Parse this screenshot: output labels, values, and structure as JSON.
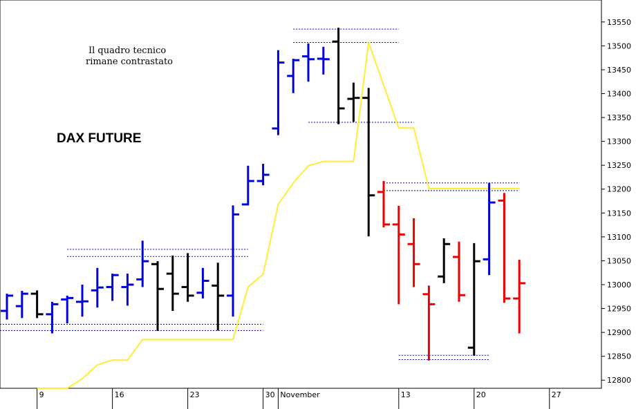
{
  "chart_data": {
    "type": "ohlc",
    "title": "DAX FUTURE",
    "annotations": [
      "Il quadro tecnico",
      "rimane contrastato"
    ],
    "xlim": [
      -0.46,
      39.45
    ],
    "ylim": [
      12783,
      13596
    ],
    "xticks": [
      {
        "value": 2,
        "label": "9"
      },
      {
        "value": 7,
        "label": "16"
      },
      {
        "value": 12,
        "label": "23"
      },
      {
        "value": 17,
        "label": "30"
      },
      {
        "value": 18,
        "label": "November"
      },
      {
        "value": 26,
        "label": "13"
      },
      {
        "value": 31,
        "label": "20"
      },
      {
        "value": 36,
        "label": "27"
      }
    ],
    "yticks": [
      12800,
      12850,
      12900,
      12950,
      13000,
      13050,
      13100,
      13150,
      13200,
      13250,
      13300,
      13350,
      13400,
      13450,
      13500,
      13550
    ],
    "open": [
      12945,
      12955,
      12981,
      12938,
      12969,
      12964,
      12988,
      12995,
      12995,
      13011,
      13043,
      13023,
      12995,
      12983,
      12998,
      12977,
      13168,
      13217,
      13327,
      13437,
      13478,
      13473,
      13509,
      13389,
      13391,
      13194,
      13126,
      13085,
      12980,
      13017,
      13058,
      12868,
      13053,
      13176,
      12971
    ],
    "high": [
      12981,
      12987,
      12988,
      12964,
      12977,
      13000,
      13035,
      13023,
      13023,
      13092,
      13049,
      13061,
      13066,
      13035,
      13046,
      13166,
      13249,
      13253,
      13491,
      13473,
      13505,
      13498,
      13538,
      13423,
      13412,
      13217,
      13165,
      13139,
      12998,
      13097,
      13090,
      13087,
      13213,
      13192,
      13052
    ],
    "low": [
      12927,
      12930,
      12930,
      12898,
      12919,
      12933,
      12952,
      12966,
      12956,
      12995,
      12903,
      12945,
      12964,
      12971,
      12904,
      12933,
      13166,
      13208,
      13313,
      13401,
      13425,
      13440,
      13336,
      13341,
      13101,
      13120,
      12959,
      12995,
      12841,
      13003,
      12964,
      12851,
      13020,
      12962,
      12898
    ],
    "close": [
      12977,
      12981,
      12938,
      12959,
      12972,
      12965,
      12994,
      13020,
      13000,
      13049,
      12991,
      12981,
      12977,
      13008,
      12977,
      13147,
      13217,
      13230,
      13465,
      13470,
      13472,
      13472,
      13369,
      13391,
      13187,
      13126,
      13105,
      13043,
      12959,
      13085,
      12978,
      13049,
      13172,
      12971,
      13003
    ],
    "colors": [
      "#0000dd",
      "#0000dd",
      "#000000",
      "#0000dd",
      "#0000dd",
      "#0000dd",
      "#0000dd",
      "#0000dd",
      "#0000dd",
      "#0000dd",
      "#000000",
      "#000000",
      "#000000",
      "#0000dd",
      "#000000",
      "#0000dd",
      "#0000dd",
      "#0000dd",
      "#0000dd",
      "#0000dd",
      "#0000dd",
      "#0000dd",
      "#000000",
      "#000000",
      "#000000",
      "#ee0000",
      "#ee0000",
      "#ee0000",
      "#ee0000",
      "#000000",
      "#ee0000",
      "#000000",
      "#0000dd",
      "#ee0000",
      "#ee0000"
    ],
    "line": {
      "color": "#ffee33",
      "x": [
        2,
        4,
        5,
        6,
        7,
        8,
        9,
        15,
        16,
        17,
        18,
        19,
        20,
        21,
        23,
        24,
        26,
        27,
        28,
        34
      ],
      "values": [
        12783,
        12783,
        12803,
        12832,
        12842,
        12842,
        12885,
        12885,
        12995,
        13022,
        13168,
        13213,
        13249,
        13258,
        13258,
        13507,
        13328,
        13328,
        13201,
        13201
      ]
    },
    "levels": {
      "color": "#0000aa",
      "items": [
        {
          "value": 13074,
          "x": [
            4,
            16
          ]
        },
        {
          "value": 13059,
          "x": [
            4,
            16
          ]
        },
        {
          "value": 12917,
          "x": [
            -0.46,
            17
          ]
        },
        {
          "value": 12904,
          "x": [
            -0.46,
            17
          ]
        },
        {
          "value": 13535,
          "x": [
            19,
            26
          ]
        },
        {
          "value": 13507,
          "x": [
            19,
            26
          ]
        },
        {
          "value": 13340,
          "x": [
            20,
            27
          ]
        },
        {
          "value": 13213,
          "x": [
            25,
            34
          ]
        },
        {
          "value": 13197,
          "x": [
            25,
            34
          ]
        },
        {
          "value": 12852,
          "x": [
            26,
            32
          ]
        },
        {
          "value": 12843,
          "x": [
            26,
            32
          ]
        }
      ]
    }
  }
}
